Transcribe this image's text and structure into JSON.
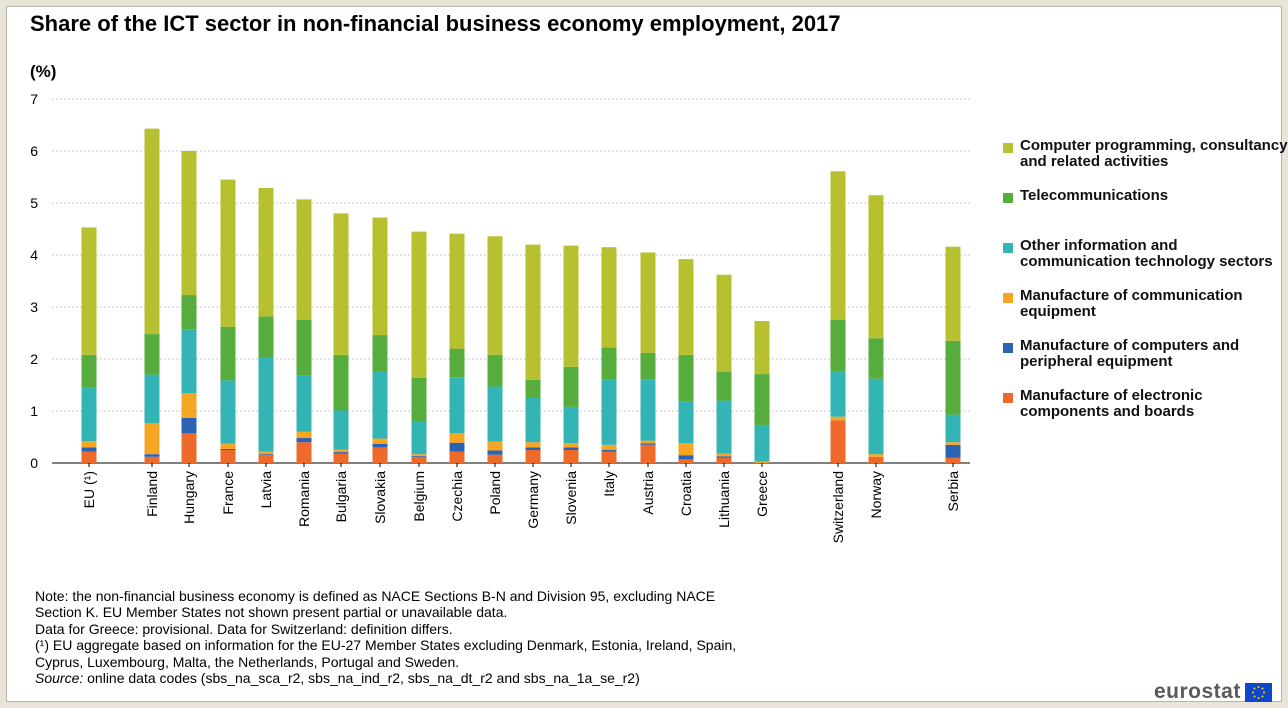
{
  "title": "Share of the ICT sector in non-financial business economy employment, 2017",
  "unit_label": "(%)",
  "chart_data": {
    "type": "bar",
    "stacked": true,
    "categories": [
      "EU (¹)",
      "Finland",
      "Hungary",
      "France",
      "Latvia",
      "Romania",
      "Bulgaria",
      "Slovakia",
      "Belgium",
      "Czechia",
      "Poland",
      "Germany",
      "Slovenia",
      "Italy",
      "Austria",
      "Croatia",
      "Lithuania",
      "Greece",
      "Switzerland",
      "Norway",
      "Serbia"
    ],
    "ylim": [
      0,
      7
    ],
    "yticks": [
      0,
      1,
      2,
      3,
      4,
      5,
      6,
      7
    ],
    "grid": true,
    "legend_position": "right",
    "series": [
      {
        "name": "Manufacture of electronic components and boards",
        "color": "#ee6a2b",
        "values": [
          0.22,
          0.12,
          0.57,
          0.25,
          0.15,
          0.4,
          0.18,
          0.3,
          0.12,
          0.22,
          0.16,
          0.25,
          0.25,
          0.22,
          0.35,
          0.07,
          0.1,
          0.0,
          0.82,
          0.12,
          0.1
        ]
      },
      {
        "name": "Manufacture of computers and peripheral equipment",
        "color": "#2a63b4",
        "values": [
          0.08,
          0.05,
          0.3,
          0.02,
          0.02,
          0.08,
          0.03,
          0.07,
          0.02,
          0.17,
          0.08,
          0.05,
          0.05,
          0.03,
          0.03,
          0.08,
          0.03,
          0.0,
          0.0,
          0.0,
          0.25
        ]
      },
      {
        "name": "Manufacture of communication equipment",
        "color": "#f5a623",
        "values": [
          0.12,
          0.6,
          0.47,
          0.1,
          0.05,
          0.12,
          0.05,
          0.1,
          0.03,
          0.18,
          0.17,
          0.1,
          0.08,
          0.1,
          0.05,
          0.23,
          0.05,
          0.03,
          0.07,
          0.05,
          0.05
        ]
      },
      {
        "name": "Other information and communication technology sectors",
        "color": "#33b5b5",
        "values": [
          1.03,
          0.93,
          1.23,
          1.22,
          1.8,
          1.08,
          0.75,
          1.3,
          0.62,
          1.08,
          1.06,
          0.85,
          0.7,
          1.25,
          1.17,
          0.8,
          1.02,
          0.7,
          0.88,
          1.45,
          0.53
        ]
      },
      {
        "name": "Telecommunications",
        "color": "#56ad3d",
        "values": [
          0.63,
          0.78,
          0.66,
          1.03,
          0.8,
          1.07,
          1.07,
          0.69,
          0.85,
          0.55,
          0.61,
          0.35,
          0.77,
          0.62,
          0.52,
          0.9,
          0.55,
          0.98,
          0.98,
          0.78,
          1.42
        ]
      },
      {
        "name": "Computer programming, consultancy and related activities",
        "color": "#b7c12f",
        "values": [
          2.45,
          3.95,
          2.77,
          2.83,
          2.47,
          2.32,
          2.72,
          2.26,
          2.81,
          2.21,
          2.28,
          2.6,
          2.33,
          1.93,
          1.93,
          1.84,
          1.87,
          1.02,
          2.86,
          2.75,
          1.81
        ]
      }
    ]
  },
  "legend": [
    {
      "label": "Computer programming, consultancy and related activities",
      "color": "#b7c12f"
    },
    {
      "label": "Telecommunications",
      "color": "#56ad3d"
    },
    {
      "label": "Other information and communication technology sectors",
      "color": "#33b5b5"
    },
    {
      "label": "Manufacture of communication equipment",
      "color": "#f5a623"
    },
    {
      "label": "Manufacture of computers and peripheral equipment",
      "color": "#2a63b4"
    },
    {
      "label": "Manufacture of electronic components and boards",
      "color": "#ee6a2b"
    }
  ],
  "notes": {
    "line1": "Note: the non-financial  business economy is defined as NACE Sections B-N and Division  95, excluding NACE",
    "line2": "Section K. EU Member States not shown present partial or unavailable  data.",
    "line3": "Data for Greece: provisional.  Data for Switzerland: definition differs.",
    "line4": "(¹) EU aggregate based on information  for the EU-27 Member States excluding  Denmark,  Estonia,  Ireland, Spain,",
    "line5": "Cyprus, Luxembourg,  Malta, the Netherlands,  Portugal and Sweden.",
    "source_label": "Source:",
    "source_text": " online data codes (sbs_na_sca_r2, sbs_na_ind_r2, sbs_na_dt_r2 and sbs_na_1a_se_r2)"
  },
  "logo": {
    "text": "eurostat",
    "flag_color": "#0e47cb",
    "star_color": "#ffd700"
  }
}
